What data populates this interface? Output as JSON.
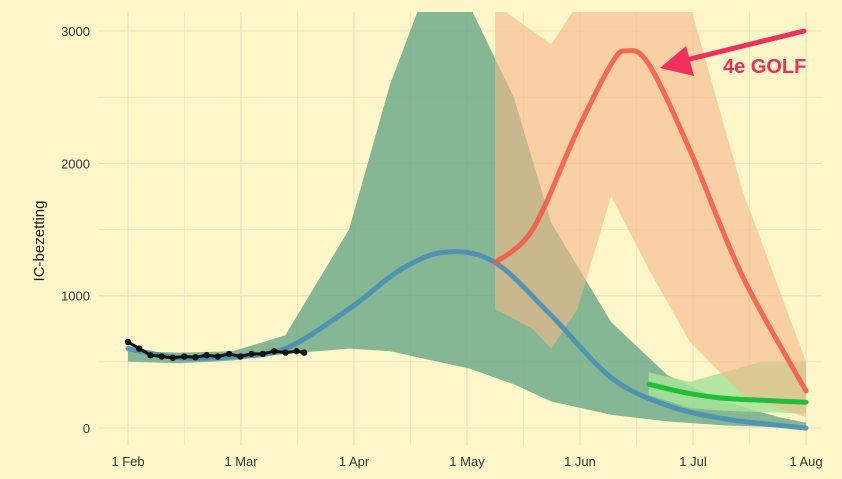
{
  "chart_data": {
    "type": "line",
    "ylabel": "IC-bezetting",
    "ylim": [
      0,
      3000
    ],
    "y_ticks": [
      0,
      1000,
      2000,
      3000
    ],
    "x_ticks": [
      "1 Feb",
      "1 Mar",
      "1 Apr",
      "1 May",
      "1 Jun",
      "1 Jul",
      "1 Aug"
    ],
    "x_range": [
      "2021-02-01",
      "2021-08-01"
    ],
    "grid": true,
    "annotation": {
      "text": "4e GOLF",
      "color": "#f0305a",
      "points_to": {
        "date": "2021-06-14",
        "value": 2850
      }
    },
    "colors": {
      "background": "#fdf6c8",
      "grid": "#e6e0bf",
      "observed": "#111111",
      "scenario_a_line": "#4a8fb4",
      "scenario_a_band": "#6aa889",
      "scenario_b_line": "#f25a46",
      "scenario_b_band": "#f7b88a",
      "scenario_c_line": "#1fbf3c",
      "scenario_c_band": "#a6e39a",
      "annotation": "#f0305a"
    },
    "series": [
      {
        "role": "observed",
        "x": [
          "2021-02-01",
          "2021-02-04",
          "2021-02-07",
          "2021-02-10",
          "2021-02-13",
          "2021-02-16",
          "2021-02-19",
          "2021-02-22",
          "2021-02-25",
          "2021-02-28",
          "2021-03-03",
          "2021-03-06",
          "2021-03-09",
          "2021-03-12",
          "2021-03-15",
          "2021-03-18",
          "2021-03-20"
        ],
        "y": [
          650,
          600,
          550,
          540,
          530,
          540,
          535,
          550,
          540,
          560,
          540,
          560,
          560,
          580,
          570,
          580,
          570
        ]
      },
      {
        "role": "scenario_a_median",
        "x": [
          "2021-02-01",
          "2021-02-15",
          "2021-03-01",
          "2021-03-15",
          "2021-04-01",
          "2021-04-15",
          "2021-04-27",
          "2021-05-10",
          "2021-05-25",
          "2021-06-10",
          "2021-06-25",
          "2021-07-10",
          "2021-07-25",
          "2021-08-01"
        ],
        "y": [
          600,
          530,
          540,
          600,
          900,
          1200,
          1330,
          1250,
          850,
          380,
          170,
          70,
          20,
          0
        ]
      },
      {
        "role": "scenario_a_band",
        "x": [
          "2021-02-01",
          "2021-02-15",
          "2021-03-01",
          "2021-03-15",
          "2021-04-01",
          "2021-04-12",
          "2021-04-20",
          "2021-05-03",
          "2021-05-15",
          "2021-05-25",
          "2021-06-10",
          "2021-06-25",
          "2021-07-10",
          "2021-07-25",
          "2021-08-01"
        ],
        "upper": [
          580,
          570,
          580,
          700,
          1500,
          2600,
          3200,
          3200,
          2500,
          1550,
          800,
          400,
          200,
          80,
          40
        ],
        "lower": [
          500,
          490,
          510,
          560,
          600,
          580,
          530,
          450,
          330,
          200,
          100,
          50,
          20,
          5,
          0
        ]
      },
      {
        "role": "scenario_b_median",
        "x": [
          "2021-05-10",
          "2021-05-20",
          "2021-06-01",
          "2021-06-10",
          "2021-06-14",
          "2021-06-20",
          "2021-07-01",
          "2021-07-15",
          "2021-08-01"
        ],
        "y": [
          1250,
          1500,
          2250,
          2750,
          2850,
          2750,
          2100,
          1150,
          280
        ]
      },
      {
        "role": "scenario_b_band",
        "x": [
          "2021-05-10",
          "2021-05-20",
          "2021-05-25",
          "2021-06-01",
          "2021-06-10",
          "2021-06-20",
          "2021-07-01",
          "2021-07-15",
          "2021-08-01"
        ],
        "upper": [
          3200,
          3000,
          2900,
          3200,
          3200,
          3200,
          3200,
          1800,
          500
        ],
        "lower": [
          900,
          750,
          600,
          900,
          1750,
          1200,
          650,
          250,
          80
        ]
      },
      {
        "role": "scenario_c_median",
        "x": [
          "2021-06-20",
          "2021-07-01",
          "2021-07-10",
          "2021-07-20",
          "2021-08-01"
        ],
        "y": [
          330,
          260,
          225,
          210,
          195
        ]
      },
      {
        "role": "scenario_c_band",
        "x": [
          "2021-06-20",
          "2021-07-01",
          "2021-07-10",
          "2021-07-20",
          "2021-08-01"
        ],
        "upper": [
          420,
          350,
          420,
          500,
          500
        ],
        "lower": [
          250,
          150,
          130,
          120,
          110
        ]
      }
    ]
  }
}
